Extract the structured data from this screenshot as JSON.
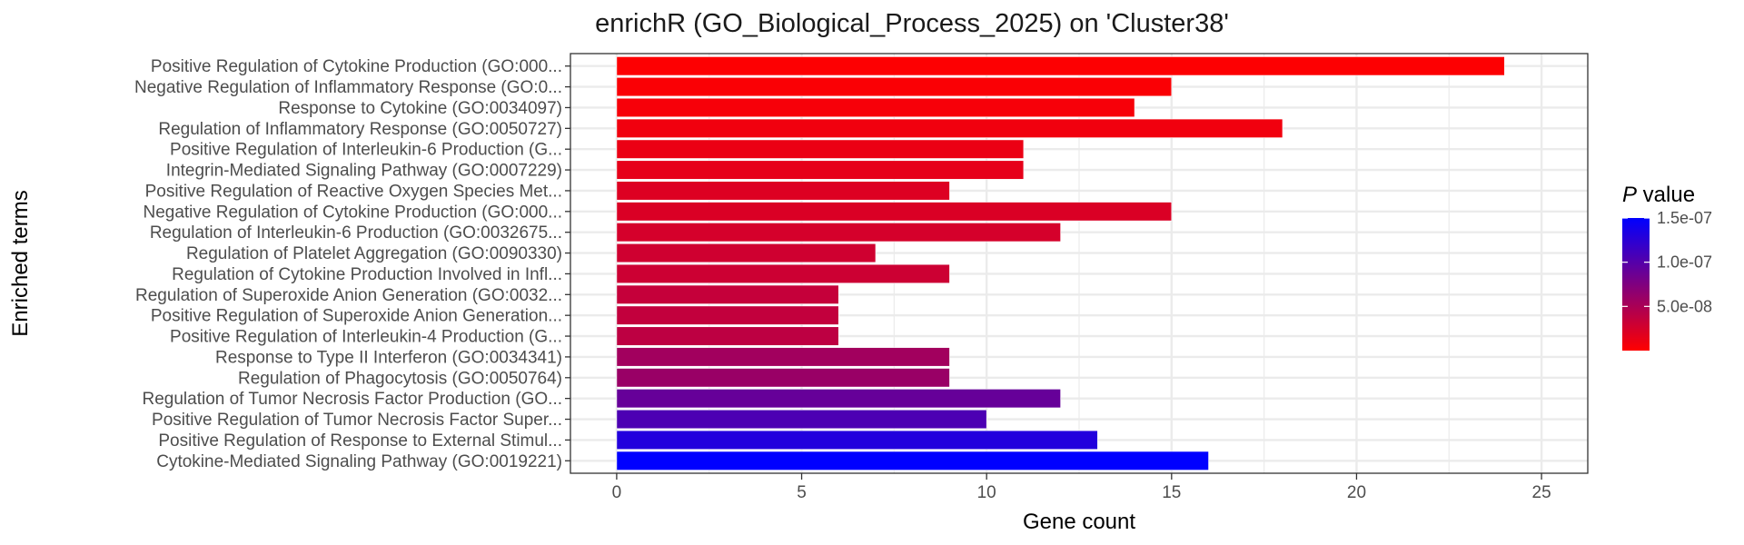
{
  "chart_data": {
    "type": "bar",
    "orientation": "horizontal",
    "title": "enrichR (GO_Biological_Process_2025) on 'Cluster38'",
    "xlabel": "Gene count",
    "ylabel": "Enriched terms",
    "xlim": [
      0,
      25
    ],
    "x_ticks": [
      "0",
      "5",
      "10",
      "15",
      "20",
      "25"
    ],
    "grid": true,
    "legend_position": "right",
    "color_scale": {
      "title_italic": "P",
      "title_rest": " value",
      "low_color": "#ff0000",
      "high_color": "#0000ff",
      "domain": [
        0,
        1.5e-07
      ],
      "tick_values": [
        5e-08,
        1e-07,
        1.5e-07
      ],
      "tick_labels": [
        "5.0e-08",
        "1.0e-07",
        "1.5e-07"
      ]
    },
    "categories": [
      "Positive Regulation of Cytokine Production (GO:000...",
      "Negative Regulation of Inflammatory Response (GO:0...",
      "Response to Cytokine (GO:0034097)",
      "Regulation of Inflammatory Response (GO:0050727)",
      "Positive Regulation of Interleukin-6 Production (G...",
      "Integrin-Mediated Signaling Pathway (GO:0007229)",
      "Positive Regulation of Reactive Oxygen Species Met...",
      "Negative Regulation of Cytokine Production (GO:000...",
      "Regulation of Interleukin-6 Production (GO:0032675...",
      "Regulation of Platelet Aggregation (GO:0090330)",
      "Regulation of Cytokine Production Involved in Infl...",
      "Regulation of Superoxide Anion Generation (GO:0032...",
      "Positive Regulation of Superoxide Anion Generation...",
      "Positive Regulation of Interleukin-4 Production (G...",
      "Response to Type II Interferon (GO:0034341)",
      "Regulation of Phagocytosis (GO:0050764)",
      "Regulation of Tumor Necrosis Factor Production (GO...",
      "Positive Regulation of Tumor Necrosis Factor Super...",
      "Positive Regulation of Response to External Stimul...",
      "Cytokine-Mediated Signaling Pathway (GO:0019221)"
    ],
    "values": [
      24,
      15,
      14,
      18,
      11,
      11,
      9,
      15,
      12,
      7,
      9,
      6,
      6,
      6,
      9,
      9,
      12,
      10,
      13,
      16
    ],
    "p_values": [
      1e-09,
      3e-09,
      5e-09,
      8e-09,
      1.2e-08,
      1.5e-08,
      2e-08,
      2.2e-08,
      2.5e-08,
      2.8e-08,
      3e-08,
      3.4e-08,
      3.6e-08,
      3.9e-08,
      5.5e-08,
      6e-08,
      9e-08,
      1.05e-07,
      1.3e-07,
      1.52e-07
    ]
  }
}
